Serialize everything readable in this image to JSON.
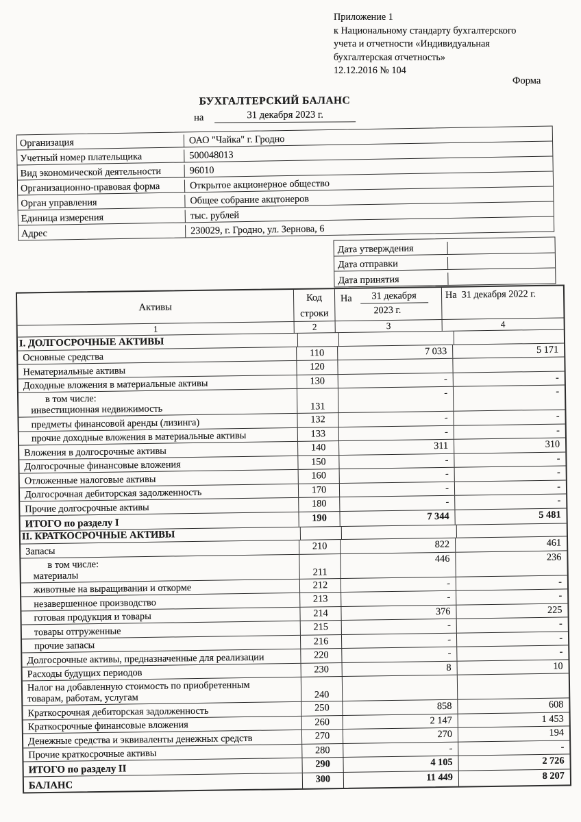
{
  "header": {
    "lines": [
      "Приложение 1",
      "к Национальному стандарту бухгалтерского",
      "учета и отчетности «Индивидуальная",
      "бухгалтерская отчетность»",
      "12.12.2016 № 104"
    ],
    "forma": "Форма"
  },
  "title": {
    "main": "БУХГАЛТЕРСКИЙ БАЛАНС",
    "date_prefix": "на",
    "date_value": "31 декабря 2023 г."
  },
  "org_info": {
    "rows": [
      {
        "label": "Организация",
        "value": "ОАО \"Чайка\" г. Гродно"
      },
      {
        "label": "Учетный номер плательщика",
        "value": "500048013"
      },
      {
        "label": "Вид экономической деятельности",
        "value": "96010"
      },
      {
        "label": "Организационно-правовая форма",
        "value": "Открытое акционерное общество"
      },
      {
        "label": "Орган управления",
        "value": "Общее собрание акцтонеров"
      },
      {
        "label": "Единица измерения",
        "value": "тыс. рублей"
      },
      {
        "label": "Адрес",
        "value": "230029, г. Гродно, ул. Зернова, 6"
      }
    ]
  },
  "dates_table": {
    "rows": [
      {
        "label": "Дата утверждения",
        "value": ""
      },
      {
        "label": "Дата отправки",
        "value": ""
      },
      {
        "label": "Дата принятия",
        "value": ""
      }
    ]
  },
  "balance_table": {
    "columns": {
      "assets": "Активы",
      "code_line1": "Код",
      "code_line2": "строки",
      "c3_prefix": "На",
      "c3_date": "31 декабря",
      "c3_year": "2023 г.",
      "c4": "На  31 декабря 2022 г.",
      "numbering": [
        "1",
        "2",
        "3",
        "4"
      ]
    },
    "rows": [
      {
        "section": "I. ДОЛГОСРОЧНЫЕ АКТИВЫ"
      },
      {
        "label": "Основные средства",
        "code": "110",
        "v1": "7 033",
        "v2": "5 171",
        "l1i": 0
      },
      {
        "label": "Нематериальные активы",
        "code": "120",
        "v1": "",
        "v2": "",
        "l1i": 0
      },
      {
        "label": "Доходные вложения в материальные активы",
        "code": "130",
        "v1": "-",
        "v2": "-",
        "l1i": 0
      },
      {
        "label": "в том числе:",
        "label2": "инвестиционная недвижимость",
        "code": "131",
        "v1": "-",
        "v2": "-",
        "l1i": 2,
        "l2i": 1,
        "tall": true
      },
      {
        "label": "предметы финансовой аренды (лизинга)",
        "code": "132",
        "v1": "-",
        "v2": "-",
        "l1i": 1
      },
      {
        "label": "прочие доходные вложения в материальные активы",
        "code": "133",
        "v1": "-",
        "v2": "-",
        "l1i": 1
      },
      {
        "label": "Вложения в долгосрочные активы",
        "code": "140",
        "v1": "311",
        "v2": "310",
        "l1i": 0
      },
      {
        "label": "Долгосрочные финансовые вложения",
        "code": "150",
        "v1": "-",
        "v2": "-",
        "l1i": 0
      },
      {
        "label": "Отложенные налоговые активы",
        "code": "160",
        "v1": "-",
        "v2": "-",
        "l1i": 0
      },
      {
        "label": "Долгосрочная дебиторская задолженность",
        "code": "170",
        "v1": "-",
        "v2": "-",
        "l1i": 0
      },
      {
        "label": "Прочие долгосрочные активы",
        "code": "180",
        "v1": "-",
        "v2": "-",
        "l1i": 0
      },
      {
        "label": "ИТОГО по разделу I",
        "code": "190",
        "v1": "7 344",
        "v2": "5 481",
        "l1i": 0,
        "strong": true
      },
      {
        "section": "II. КРАТКОСРОЧНЫЕ АКТИВЫ"
      },
      {
        "label": "Запасы",
        "code": "210",
        "v1": "822",
        "v2": "461",
        "l1i": 0
      },
      {
        "label": "в том числе:",
        "label2": "материалы",
        "code": "211",
        "v1": "446",
        "v2": "236",
        "l1i": 2,
        "l2i": 1,
        "tall": true
      },
      {
        "label": "животные на выращивании и откорме",
        "code": "212",
        "v1": "-",
        "v2": "-",
        "l1i": 1
      },
      {
        "label": "незавершенное производство",
        "code": "213",
        "v1": "-",
        "v2": "-",
        "l1i": 1
      },
      {
        "label": "готовая продукция и товары",
        "code": "214",
        "v1": "376",
        "v2": "225",
        "l1i": 1
      },
      {
        "label": "товары отгруженные",
        "code": "215",
        "v1": "-",
        "v2": "-",
        "l1i": 1
      },
      {
        "label": "прочие запасы",
        "code": "216",
        "v1": "-",
        "v2": "-",
        "l1i": 1
      },
      {
        "label": "Долгосрочные активы, предназначенные для реализации",
        "code": "220",
        "v1": "-",
        "v2": "-",
        "l1i": 0
      },
      {
        "label": "Расходы будущих периодов",
        "code": "230",
        "v1": "8",
        "v2": "10",
        "l1i": 0
      },
      {
        "label": "Налог на добавленную стоимость по приобретенным",
        "label2": "товарам, работам, услугам",
        "code": "240",
        "v1": "",
        "v2": "",
        "l1i": 0,
        "l2i": 0,
        "tall": true
      },
      {
        "label": "Краткосрочная дебиторская задолженность",
        "code": "250",
        "v1": "858",
        "v2": "608",
        "l1i": 0
      },
      {
        "label": "Краткосрочные финансовые вложения",
        "code": "260",
        "v1": "2 147",
        "v2": "1 453",
        "l1i": 0
      },
      {
        "label": "Денежные средства и эквиваленты денежных средств",
        "code": "270",
        "v1": "270",
        "v2": "194",
        "l1i": 0
      },
      {
        "label": "Прочие краткосрочные активы",
        "code": "280",
        "v1": "-",
        "v2": "-",
        "l1i": 0
      },
      {
        "label": "ИТОГО по разделу II",
        "code": "290",
        "v1": "4 105",
        "v2": "2 726",
        "l1i": 0,
        "strong": true
      },
      {
        "label": "БАЛАНС",
        "code": "300",
        "v1": "11 449",
        "v2": "8 207",
        "l1i": 0,
        "strong": true,
        "last": true
      }
    ]
  }
}
